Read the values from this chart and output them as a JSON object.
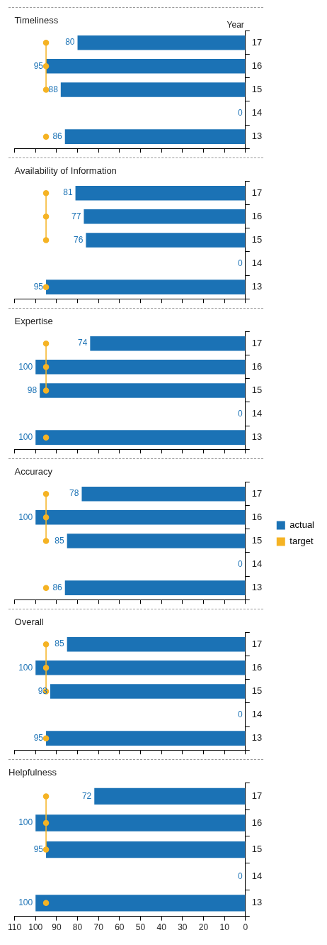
{
  "chart_data": [
    {
      "type": "bar",
      "orientation": "horizontal",
      "title": "Timeliness",
      "ylabel": "Year",
      "categories": [
        "17",
        "16",
        "15",
        "14",
        "13"
      ],
      "series": [
        {
          "color": "#1b72b5",
          "values": [
            80,
            95,
            88,
            0,
            86
          ],
          "value_labels": [
            "80",
            "95",
            "88",
            "0",
            "86"
          ]
        },
        {
          "type": "line",
          "color": "#f5b324",
          "marker": "circle",
          "values": [
            95,
            95,
            95,
            null,
            95
          ]
        }
      ],
      "xlim": [
        110,
        0
      ],
      "xticks": [
        110,
        100,
        90,
        80,
        70,
        60,
        50,
        40,
        30,
        20,
        10,
        0
      ],
      "tick_labels": "y"
    },
    {
      "type": "bar",
      "orientation": "horizontal",
      "title": "Availability of Information",
      "categories": [
        "17",
        "16",
        "15",
        "14",
        "13"
      ],
      "series": [
        {
          "color": "#1b72b5",
          "values": [
            81,
            77,
            76,
            0,
            95
          ],
          "value_labels": [
            "81",
            "77",
            "76",
            "0",
            "95"
          ]
        },
        {
          "type": "line",
          "color": "#f5b324",
          "marker": "circle",
          "values": [
            95,
            95,
            95,
            null,
            95
          ]
        }
      ],
      "xlim": [
        110,
        0
      ],
      "xticks": [
        110,
        100,
        90,
        80,
        70,
        60,
        50,
        40,
        30,
        20,
        10,
        0
      ],
      "tick_labels": "y"
    },
    {
      "type": "bar",
      "orientation": "horizontal",
      "title": "Expertise",
      "categories": [
        "17",
        "16",
        "15",
        "14",
        "13"
      ],
      "series": [
        {
          "color": "#1b72b5",
          "values": [
            74,
            100,
            98,
            0,
            100
          ],
          "value_labels": [
            "74",
            "100",
            "98",
            "0",
            "100"
          ]
        },
        {
          "type": "line",
          "color": "#f5b324",
          "marker": "circle",
          "values": [
            95,
            95,
            95,
            null,
            95
          ]
        }
      ],
      "xlim": [
        110,
        0
      ],
      "xticks": [
        110,
        100,
        90,
        80,
        70,
        60,
        50,
        40,
        30,
        20,
        10,
        0
      ],
      "tick_labels": "y"
    },
    {
      "type": "bar",
      "orientation": "horizontal",
      "title": "Accuracy",
      "categories": [
        "17",
        "16",
        "15",
        "14",
        "13"
      ],
      "series": [
        {
          "name": "actual",
          "color": "#1b72b5",
          "values": [
            78,
            100,
            85,
            0,
            86
          ],
          "value_labels": [
            "78",
            "100",
            "85",
            "0",
            "86"
          ]
        },
        {
          "name": "target",
          "type": "line",
          "color": "#f5b324",
          "marker": "circle",
          "values": [
            95,
            95,
            95,
            null,
            95
          ]
        }
      ],
      "xlim": [
        110,
        0
      ],
      "xticks": [
        110,
        100,
        90,
        80,
        70,
        60,
        50,
        40,
        30,
        20,
        10,
        0
      ],
      "tick_labels": "y",
      "legend": "right"
    },
    {
      "type": "bar",
      "orientation": "horizontal",
      "title": "Overall",
      "categories": [
        "17",
        "16",
        "15",
        "14",
        "13"
      ],
      "series": [
        {
          "color": "#1b72b5",
          "values": [
            85,
            100,
            93,
            0,
            95
          ],
          "value_labels": [
            "85",
            "100",
            "93",
            "0",
            "95"
          ]
        },
        {
          "type": "line",
          "color": "#f5b324",
          "marker": "circle",
          "values": [
            95,
            95,
            95,
            null,
            95
          ]
        }
      ],
      "xlim": [
        110,
        0
      ],
      "xticks": [
        110,
        100,
        90,
        80,
        70,
        60,
        50,
        40,
        30,
        20,
        10,
        0
      ],
      "tick_labels": "y"
    },
    {
      "type": "bar",
      "orientation": "horizontal",
      "title": "Helpfulness",
      "categories": [
        "17",
        "16",
        "15",
        "14",
        "13"
      ],
      "series": [
        {
          "color": "#1b72b5",
          "values": [
            72,
            100,
            95,
            0,
            100
          ],
          "value_labels": [
            "72",
            "100",
            "95",
            "0",
            "100"
          ]
        },
        {
          "type": "line",
          "color": "#f5b324",
          "marker": "circle",
          "values": [
            95,
            95,
            95,
            null,
            95
          ]
        }
      ],
      "xlim": [
        110,
        0
      ],
      "xticks": [
        110,
        100,
        90,
        80,
        70,
        60,
        50,
        40,
        30,
        20,
        10,
        0
      ]
    }
  ]
}
